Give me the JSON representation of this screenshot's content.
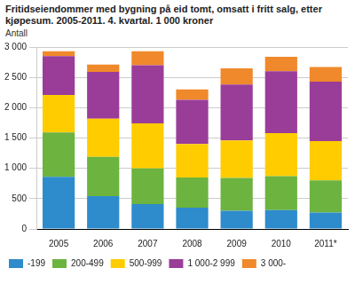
{
  "chart_data": {
    "type": "bar",
    "title": "Fritidseiendommer med bygning på eid tomt, omsatt i fritt salg, etter kjøpesum. 2005-2011. 4. kvartal. 1 000 kroner",
    "y_label": "Antall",
    "categories": [
      "2005",
      "2006",
      "2007",
      "2008",
      "2009",
      "2010",
      "2011*"
    ],
    "series": [
      {
        "name": "-199",
        "color": "#2e8bcc",
        "values": [
          860,
          540,
          410,
          350,
          300,
          310,
          270
        ]
      },
      {
        "name": "200-499",
        "color": "#6cb33f",
        "values": [
          730,
          650,
          590,
          500,
          540,
          560,
          530
        ]
      },
      {
        "name": "500-999",
        "color": "#ffcc00",
        "values": [
          620,
          630,
          740,
          550,
          620,
          710,
          650
        ]
      },
      {
        "name": "1 000-2 999",
        "color": "#993d99",
        "values": [
          640,
          770,
          960,
          730,
          920,
          1020,
          980
        ]
      },
      {
        "name": "3 000-",
        "color": "#f0892b",
        "values": [
          80,
          120,
          230,
          170,
          270,
          240,
          240
        ]
      }
    ],
    "stacked": true,
    "ylim": [
      0,
      3000
    ],
    "yticks": [
      0,
      500,
      {
        "value": 1000,
        "label": "1 000"
      },
      {
        "value": 1500,
        "label": "1 500"
      },
      {
        "value": 2000,
        "label": "2 000"
      },
      {
        "value": 2500,
        "label": "2 500"
      },
      {
        "value": 3000,
        "label": "3 000"
      }
    ],
    "grid": true,
    "legend": "bottom"
  }
}
